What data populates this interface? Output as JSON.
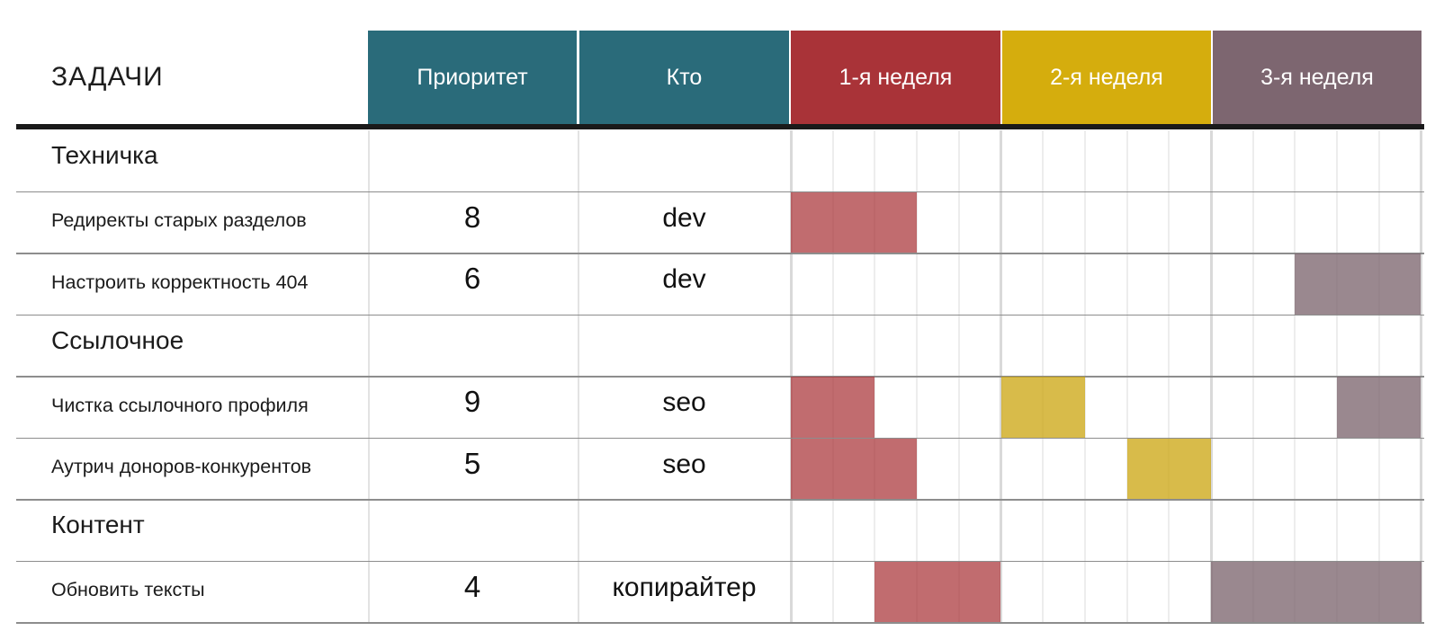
{
  "chart_data": {
    "type": "table",
    "subtype": "gantt",
    "title": "ЗАДАЧИ",
    "columns": [
      {
        "label": "Приоритет",
        "color": "#2a6b7a"
      },
      {
        "label": "Кто",
        "color": "#2a6b7a"
      },
      {
        "label": "1-я неделя",
        "color": "#a93338"
      },
      {
        "label": "2-я неделя",
        "color": "#d5ad0d"
      },
      {
        "label": "3-я неделя",
        "color": "#7d6670"
      }
    ],
    "weeks": [
      "1-я неделя",
      "2-я неделя",
      "3-я неделя"
    ],
    "days_per_week": 5,
    "rows": [
      {
        "kind": "section",
        "task": "Техничка"
      },
      {
        "kind": "task",
        "task": "Редиректы старых разделов",
        "priority": 8,
        "who": "dev",
        "bars": [
          {
            "week": 1,
            "days": [
              1,
              3
            ],
            "color": "red"
          }
        ]
      },
      {
        "kind": "task",
        "task": "Настроить корректность 404",
        "priority": 6,
        "who": "dev",
        "bars": [
          {
            "week": 3,
            "days": [
              3,
              5
            ],
            "color": "purple"
          }
        ]
      },
      {
        "kind": "section",
        "task": "Ссылочное"
      },
      {
        "kind": "task",
        "task": "Чистка ссылочного профиля",
        "priority": 9,
        "who": "seo",
        "bars": [
          {
            "week": 1,
            "days": [
              1,
              2
            ],
            "color": "red"
          },
          {
            "week": 2,
            "days": [
              1,
              2
            ],
            "color": "yellow"
          },
          {
            "week": 3,
            "days": [
              4,
              5
            ],
            "color": "purple"
          }
        ]
      },
      {
        "kind": "task",
        "task": "Аутрич доноров-конкурентов",
        "priority": 5,
        "who": "seo",
        "bars": [
          {
            "week": 1,
            "days": [
              1,
              3
            ],
            "color": "red"
          },
          {
            "week": 2,
            "days": [
              4,
              5
            ],
            "color": "yellow"
          }
        ]
      },
      {
        "kind": "section",
        "task": "Контент"
      },
      {
        "kind": "task",
        "task": "Обновить тексты",
        "priority": 4,
        "who": "копирайтер",
        "bars": [
          {
            "week": 1,
            "days": [
              3,
              5
            ],
            "color": "red"
          },
          {
            "week": 3,
            "days": [
              1,
              5
            ],
            "color": "purple"
          }
        ]
      }
    ],
    "legend_position": "none",
    "grid": true
  },
  "colors": {
    "header_text": "#ffffff",
    "text": "#1c1c1c",
    "header_underline": "#1a1a1a",
    "row_line": "#8d8d8d",
    "column_line": "#e3e3e3",
    "day_line": "#ededed",
    "week_line": "#d9d9d9",
    "bar_colors": {
      "red": "rgba(169, 51, 56, 0.72)",
      "yellow": "rgba(203, 164, 13, 0.75)",
      "purple": "rgba(125, 102, 112, 0.78)"
    }
  }
}
